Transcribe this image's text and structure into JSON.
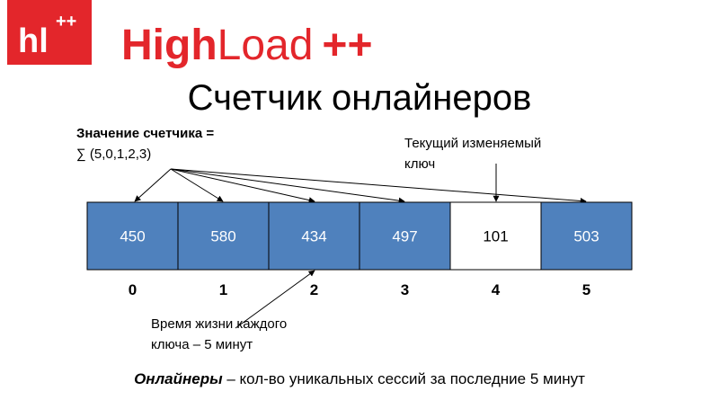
{
  "logo": {
    "badge": "hl",
    "badge_sup": "++",
    "brand_bold": "High",
    "brand_light": "Load",
    "brand_plus": "++"
  },
  "title": "Счетчик онлайнеров",
  "sum_note": {
    "line1": "Значение счетчика =",
    "line2": "∑ (5,0,1,2,3)"
  },
  "current_note": {
    "line1": "Текущий изменяемый",
    "line2": "ключ"
  },
  "ttl_note": {
    "line1": "Время жизни каждого",
    "line2": "ключа – 5 минут"
  },
  "cells": [
    {
      "index": "0",
      "value": "450",
      "color": "#4f81bd"
    },
    {
      "index": "1",
      "value": "580",
      "color": "#4f81bd"
    },
    {
      "index": "2",
      "value": "434",
      "color": "#4f81bd"
    },
    {
      "index": "3",
      "value": "497",
      "color": "#4f81bd"
    },
    {
      "index": "4",
      "value": "101",
      "color": "#ffffff"
    },
    {
      "index": "5",
      "value": "503",
      "color": "#4f81bd"
    }
  ],
  "footer": {
    "term": "Онлайнеры",
    "definition": " – кол-во уникальных сессий за последние 5 минут"
  }
}
